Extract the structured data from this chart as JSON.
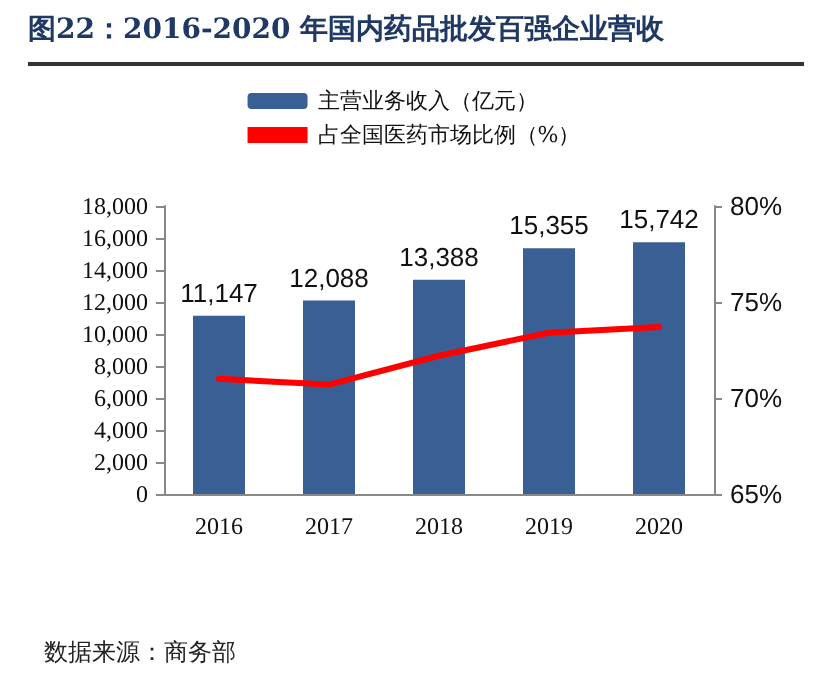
{
  "chart_data": {
    "type": "bar",
    "title": "图22：2016-2020 年国内药品批发百强企业营收",
    "annotations": [
      "数据来源：商务部"
    ],
    "categories": [
      "2016",
      "2017",
      "2018",
      "2019",
      "2020"
    ],
    "series": [
      {
        "name": "主营业务收入（亿元）",
        "color": "#3a5f94",
        "values": [
          11147,
          12088,
          13388,
          15355,
          15742
        ],
        "value_labels": [
          "11,147",
          "12,088",
          "13,388",
          "15,355",
          "15,742"
        ]
      },
      {
        "name": "占全国医药市场比例（%）",
        "type": "line",
        "axis": "y2",
        "color": "#ff0000",
        "values": [
          71.0,
          70.7,
          72.2,
          73.4,
          73.7
        ]
      }
    ],
    "ylim": [
      0,
      18000
    ],
    "yticks": [
      {
        "value": 0,
        "label": "0"
      },
      {
        "value": 2000,
        "label": "2,000"
      },
      {
        "value": 4000,
        "label": "4,000"
      },
      {
        "value": 6000,
        "label": "6,000"
      },
      {
        "value": 8000,
        "label": "8,000"
      },
      {
        "value": 10000,
        "label": "10,000"
      },
      {
        "value": 12000,
        "label": "12,000"
      },
      {
        "value": 14000,
        "label": "14,000"
      },
      {
        "value": 16000,
        "label": "16,000"
      },
      {
        "value": 18000,
        "label": "18,000"
      }
    ],
    "y2lim": [
      65,
      80
    ],
    "y2ticks": [
      {
        "value": 65,
        "label": "65%"
      },
      {
        "value": 70,
        "label": "70%"
      },
      {
        "value": 75,
        "label": "75%"
      },
      {
        "value": 80,
        "label": "80%"
      }
    ],
    "grid": false,
    "legend": "top",
    "marker": "none",
    "line_style": "solid"
  }
}
